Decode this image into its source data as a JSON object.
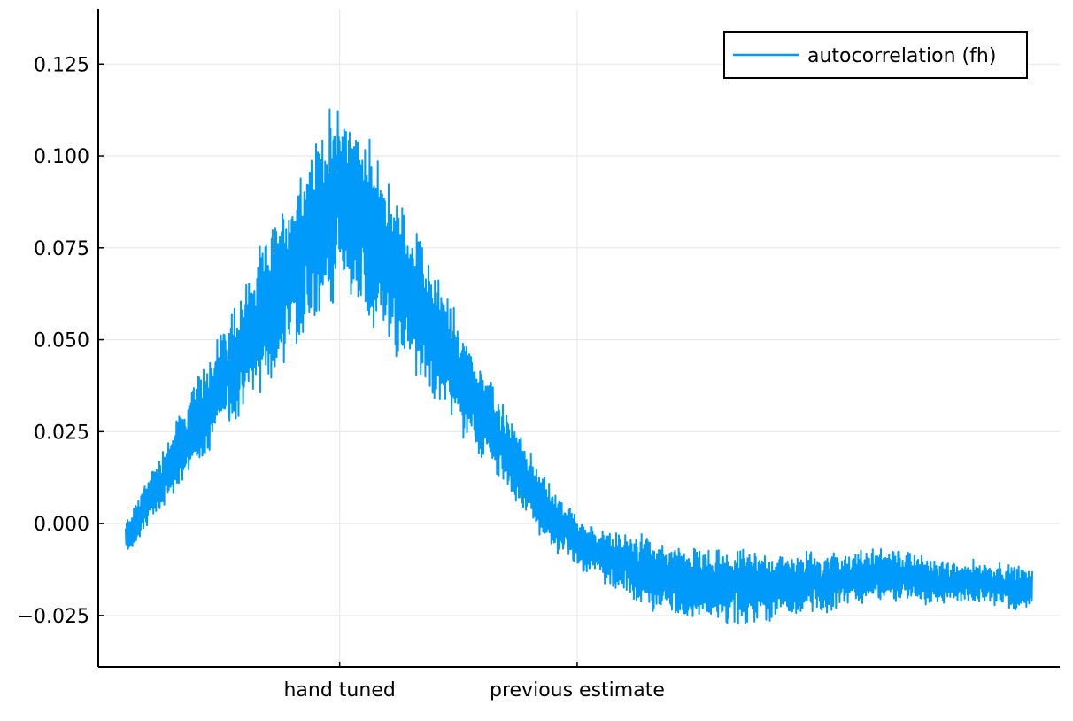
{
  "chart_data": {
    "type": "line",
    "title": "",
    "xlabel": "",
    "ylabel": "",
    "x_range": [
      0,
      1000
    ],
    "ylim": [
      -0.039,
      0.14
    ],
    "y_ticks": [
      -0.025,
      0.0,
      0.025,
      0.05,
      0.075,
      0.1,
      0.125
    ],
    "y_tick_labels": [
      "−0.025",
      "0.000",
      "0.025",
      "0.050",
      "0.075",
      "0.100",
      "0.125"
    ],
    "x_ticks": [
      {
        "x": 236,
        "label": "hand tuned"
      },
      {
        "x": 498,
        "label": "previous estimate"
      }
    ],
    "grid": true,
    "legend_position": "top-right",
    "colors": {
      "series": "#009AFA",
      "grid": "#E6E6E6",
      "axis": "#000000"
    },
    "series": [
      {
        "name": "autocorrelation (fh)",
        "x": [
          0,
          25,
          50,
          75,
          100,
          125,
          150,
          175,
          200,
          225,
          236,
          250,
          275,
          300,
          325,
          350,
          375,
          400,
          425,
          450,
          475,
          498,
          525,
          550,
          575,
          600,
          625,
          650,
          675,
          700,
          725,
          750,
          775,
          800,
          825,
          850,
          875,
          900,
          925,
          950,
          975,
          1000
        ],
        "values": [
          -0.004,
          0.006,
          0.016,
          0.026,
          0.036,
          0.046,
          0.056,
          0.066,
          0.076,
          0.085,
          0.089,
          0.085,
          0.077,
          0.067,
          0.058,
          0.048,
          0.038,
          0.028,
          0.018,
          0.008,
          0.0,
          -0.005,
          -0.009,
          -0.011,
          -0.013,
          -0.015,
          -0.016,
          -0.017,
          -0.017,
          -0.017,
          -0.017,
          -0.016,
          -0.016,
          -0.015,
          -0.014,
          -0.014,
          -0.015,
          -0.016,
          -0.016,
          -0.016,
          -0.017,
          -0.018
        ],
        "noise_envelope": [
          0.004,
          0.006,
          0.008,
          0.01,
          0.012,
          0.014,
          0.016,
          0.018,
          0.02,
          0.022,
          0.023,
          0.022,
          0.02,
          0.018,
          0.016,
          0.014,
          0.012,
          0.01,
          0.009,
          0.008,
          0.007,
          0.006,
          0.006,
          0.007,
          0.008,
          0.008,
          0.008,
          0.008,
          0.008,
          0.008,
          0.007,
          0.007,
          0.007,
          0.006,
          0.006,
          0.006,
          0.006,
          0.005,
          0.005,
          0.005,
          0.005,
          0.005
        ]
      }
    ]
  }
}
